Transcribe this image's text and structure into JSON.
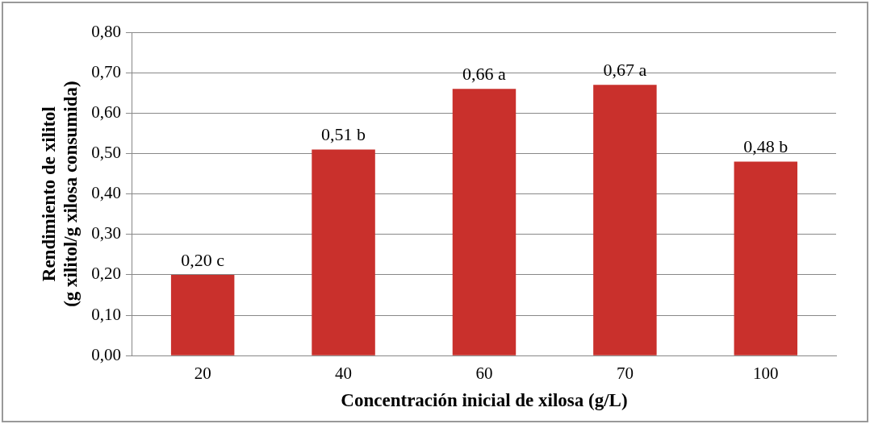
{
  "chart_data": {
    "type": "bar",
    "xlabel": "Concentración inicial de xilosa (g/L)",
    "ylabel": "Rendimiento de xilitol\n(g xilitol/g xilosa consumida)",
    "categories": [
      "20",
      "40",
      "60",
      "70",
      "100"
    ],
    "series": [
      {
        "color": "#c9302c",
        "values": [
          0.2,
          0.51,
          0.66,
          0.67,
          0.48
        ],
        "value_labels": [
          "0,20 c",
          "0,51 b",
          "0,66 a",
          "0,67 a",
          "0,48 b"
        ]
      }
    ],
    "ylim": [
      0,
      0.8
    ],
    "yticks": [
      {
        "value": 0,
        "label": "0,00"
      },
      {
        "value": 0.1,
        "label": "0,10"
      },
      {
        "value": 0.2,
        "label": "0,20"
      },
      {
        "value": 0.3,
        "label": "0,30"
      },
      {
        "value": 0.4,
        "label": "0,40"
      },
      {
        "value": 0.5,
        "label": "0,50"
      },
      {
        "value": 0.6,
        "label": "0,60"
      },
      {
        "value": 0.7,
        "label": "0,70"
      },
      {
        "value": 0.8,
        "label": "0,80"
      }
    ],
    "grid": "y",
    "legend": false
  }
}
